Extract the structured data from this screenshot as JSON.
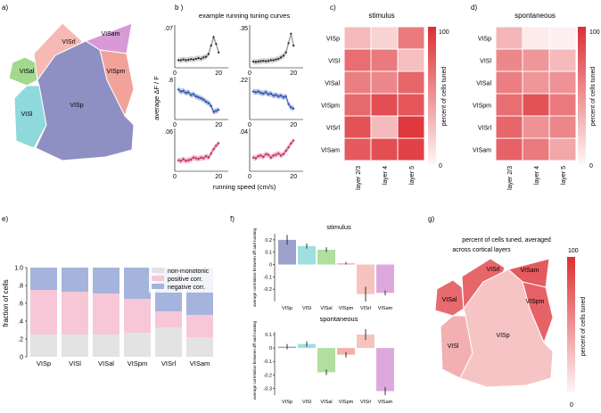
{
  "colors": {
    "VISp": "#8e90c4",
    "VISl": "#8fd9dc",
    "VISal": "#a2d98f",
    "VISpm": "#f1a39a",
    "VISrl": "#f6b9b3",
    "VISam": "#d79ad6",
    "heat_low": "#fff6f6",
    "heat_high": "#dd2e33",
    "trace_black": "#9a9a9a",
    "trace_blue": "#4a72c4",
    "trace_pink": "#e45f8a",
    "frac_nonmono": "#e3e3e3",
    "frac_positive": "#f7c7d8",
    "frac_negative": "#a5b4dc"
  },
  "panel_a": {
    "label": "a)",
    "areas": [
      "VISp",
      "VISl",
      "VISal",
      "VISrl",
      "VISam",
      "VISpm"
    ]
  },
  "panel_b": {
    "label": "b )",
    "title": "example running tuning curves",
    "ylabel": "average ΔF / F",
    "xlabel": "running speed (cm/s)",
    "plots": [
      {
        "name": "b-r1c1",
        "ytop": ".07",
        "color": "black",
        "xticks": [
          "0",
          "20"
        ],
        "values": [
          0.12,
          0.12,
          0.14,
          0.12,
          0.13,
          0.15,
          0.14,
          0.16,
          0.18,
          0.16,
          0.2,
          0.22,
          0.3,
          0.55,
          0.8,
          0.6,
          0.35
        ]
      },
      {
        "name": "b-r1c2",
        "ytop": ".35",
        "color": "black",
        "xticks": [
          "0",
          "20"
        ],
        "values": [
          0.08,
          0.07,
          0.08,
          0.09,
          0.1,
          0.09,
          0.1,
          0.12,
          0.12,
          0.14,
          0.16,
          0.2,
          0.25,
          0.35,
          0.62,
          0.9,
          0.55
        ]
      },
      {
        "name": "b-r2c1",
        "ytop": ".8",
        "color": "blue",
        "xticks": [
          "0",
          "20"
        ],
        "values": [
          0.78,
          0.72,
          0.74,
          0.68,
          0.7,
          0.62,
          0.64,
          0.58,
          0.55,
          0.52,
          0.48,
          0.42,
          0.38,
          0.3,
          0.12,
          0.15,
          0.18
        ]
      },
      {
        "name": "b-r2c2",
        "ytop": ".22",
        "color": "blue",
        "xticks": [
          "0",
          "20"
        ],
        "values": [
          0.72,
          0.7,
          0.72,
          0.68,
          0.66,
          0.7,
          0.64,
          0.66,
          0.6,
          0.62,
          0.58,
          0.6,
          0.55,
          0.58,
          0.35,
          0.25,
          0.22
        ]
      },
      {
        "name": "b-r3c1",
        "ytop": ".06",
        "color": "pink",
        "xticks": [
          "0",
          "20"
        ],
        "values": [
          0.22,
          0.2,
          0.25,
          0.2,
          0.22,
          0.24,
          0.3,
          0.28,
          0.26,
          0.3,
          0.28,
          0.34,
          0.3,
          0.42,
          0.55,
          0.65,
          0.72
        ]
      },
      {
        "name": "b-r3c2",
        "ytop": ".04",
        "color": "pink",
        "xticks": [
          "0",
          "20"
        ],
        "values": [
          0.3,
          0.28,
          0.34,
          0.36,
          0.32,
          0.4,
          0.38,
          0.3,
          0.36,
          0.38,
          0.42,
          0.36,
          0.4,
          0.5,
          0.6,
          0.72,
          0.8
        ]
      }
    ]
  },
  "panel_c": {
    "label": "c)",
    "title": "stimulus",
    "cbar_label": "percent of cells tuned",
    "cbar_max": "100",
    "cbar_min": "0"
  },
  "panel_d": {
    "label": "d)",
    "title": "spontaneous"
  },
  "panel_e": {
    "label": "e)",
    "ylabel": "fraction of cells"
  },
  "panel_f": {
    "label": "f)",
    "stim_title": "stimulus",
    "spon_title": "spontaneous",
    "ylabel": "average correlation between dff and running"
  },
  "panel_g": {
    "label": "g)",
    "title_line1": "percent of cells tuned, averaged",
    "title_line2": "across cortical layers",
    "cbar_label": "percent of cells tuned",
    "cbar_max": "100",
    "cbar_min": "0",
    "areas": [
      {
        "name": "VISp",
        "value": 25
      },
      {
        "name": "VISl",
        "value": 35
      },
      {
        "name": "VISal",
        "value": 70
      },
      {
        "name": "VISrl",
        "value": 72
      },
      {
        "name": "VISam",
        "value": 78
      },
      {
        "name": "VISpm",
        "value": 74
      }
    ]
  },
  "chart_data": [
    {
      "type": "heatmap",
      "title": "stimulus",
      "rows": [
        "VISp",
        "VISl",
        "VISal",
        "VISpm",
        "VISrl",
        "VISam"
      ],
      "columns": [
        "layer 2/3",
        "layer 4",
        "layer 5"
      ],
      "values": [
        [
          30,
          18,
          62
        ],
        [
          68,
          62,
          28
        ],
        [
          60,
          55,
          72
        ],
        [
          70,
          84,
          80
        ],
        [
          82,
          30,
          95
        ],
        [
          78,
          84,
          90
        ]
      ],
      "zlim": [
        0,
        100
      ],
      "zlabel": "percent of cells tuned"
    },
    {
      "type": "heatmap",
      "title": "spontaneous",
      "rows": [
        "VISp",
        "VISl",
        "VISal",
        "VISpm",
        "VISrl",
        "VISam"
      ],
      "columns": [
        "layer 2/3",
        "layer 4",
        "layer 5"
      ],
      "values": [
        [
          32,
          6,
          3
        ],
        [
          55,
          48,
          30
        ],
        [
          60,
          48,
          50
        ],
        [
          68,
          82,
          62
        ],
        [
          72,
          50,
          56
        ],
        [
          74,
          62,
          40
        ]
      ],
      "zlim": [
        0,
        100
      ],
      "zlabel": "percent of cells tuned"
    },
    {
      "type": "bar",
      "stacked": true,
      "categories": [
        "VISp",
        "VISl",
        "VISal",
        "VISpm",
        "VISrl",
        "VISam"
      ],
      "series": [
        {
          "name": "non-monotonic",
          "values": [
            0.25,
            0.25,
            0.25,
            0.27,
            0.33,
            0.22
          ]
        },
        {
          "name": "positive corr.",
          "values": [
            0.5,
            0.48,
            0.46,
            0.38,
            0.18,
            0.25
          ]
        },
        {
          "name": "negative corr.",
          "values": [
            0.25,
            0.27,
            0.29,
            0.35,
            0.49,
            0.53
          ]
        }
      ],
      "ylabel": "fraction of cells",
      "ylim": [
        0,
        1.0
      ],
      "yticks": [
        "0",
        ".2",
        ".4",
        ".6",
        ".8",
        "1.0"
      ],
      "legend": "top-right"
    },
    {
      "type": "bar",
      "title": "stimulus",
      "categories": [
        "VISp",
        "VISl",
        "VISal",
        "VISpm",
        "VISrl",
        "VISam"
      ],
      "values": [
        0.2,
        0.15,
        0.12,
        0.01,
        -0.24,
        -0.23
      ],
      "errors": [
        0.04,
        0.02,
        0.02,
        0.01,
        0.06,
        0.02
      ],
      "ylim": [
        -0.3,
        0.25
      ],
      "yticks": [
        "0.2",
        "0.1",
        "0",
        "-0.1",
        "-0.2"
      ],
      "ylabel": "average correlation between dff and running"
    },
    {
      "type": "bar",
      "title": "spontaneous",
      "categories": [
        "VISp",
        "VISl",
        "VISal",
        "VISpm",
        "VISrl",
        "VISam"
      ],
      "values": [
        0.01,
        0.03,
        -0.18,
        -0.05,
        0.1,
        -0.32
      ],
      "errors": [
        0.02,
        0.02,
        0.02,
        0.02,
        0.04,
        0.03
      ],
      "ylim": [
        -0.35,
        0.12
      ],
      "yticks": [
        "0.1",
        "0",
        "-0.1",
        "-0.2",
        "-0.3"
      ],
      "ylabel": "average correlation between dff and running"
    }
  ]
}
